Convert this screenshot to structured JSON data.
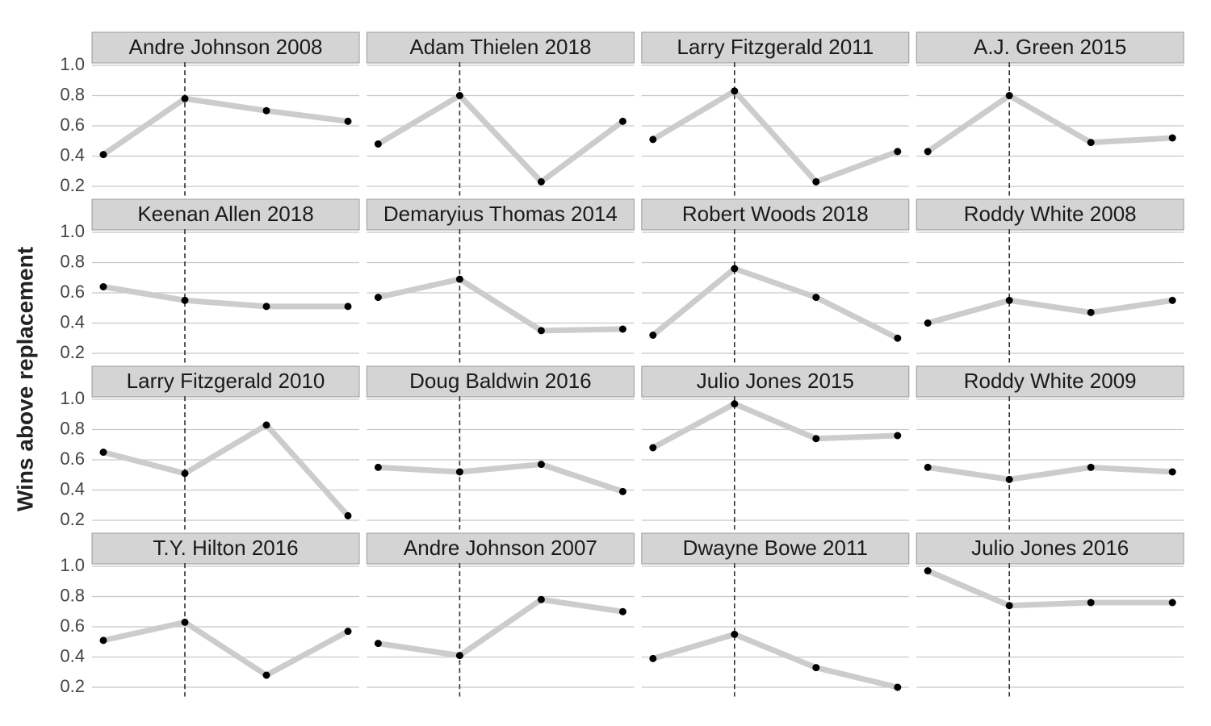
{
  "chart_data": [
    {
      "type": "line",
      "title": "Andre Johnson 2008",
      "ylabel": "Wins above replacement",
      "categories": [
        null,
        null,
        null,
        null
      ],
      "values": [
        0.41,
        0.78,
        0.7,
        0.63
      ],
      "color": "#cccccc",
      "point_color": "#000000",
      "ylim": [
        0.16,
        1.01
      ],
      "yticks": [
        0.2,
        0.4,
        0.6,
        0.8,
        {
          "value": 1,
          "label": "1.0"
        }
      ],
      "grid": true
    },
    {
      "type": "line",
      "title": "Adam Thielen 2018",
      "categories": [
        null,
        null,
        null,
        null
      ],
      "values": [
        0.48,
        0.8,
        0.23,
        0.63
      ],
      "color": "#cccccc",
      "point_color": "#000000",
      "ylim": [
        0.16,
        1.01
      ],
      "yticks": [
        0.2,
        0.4,
        0.6,
        0.8,
        {
          "value": 1,
          "label": "1.0"
        }
      ],
      "grid": true
    },
    {
      "type": "line",
      "title": "Larry Fitzgerald 2011",
      "categories": [
        null,
        null,
        null,
        null
      ],
      "values": [
        0.51,
        0.83,
        0.23,
        0.43
      ],
      "color": "#cccccc",
      "point_color": "#000000",
      "ylim": [
        0.16,
        1.01
      ],
      "yticks": [
        0.2,
        0.4,
        0.6,
        0.8,
        {
          "value": 1,
          "label": "1.0"
        }
      ],
      "grid": true
    },
    {
      "type": "line",
      "title": "A.J. Green 2015",
      "categories": [
        null,
        null,
        null,
        null
      ],
      "values": [
        0.43,
        0.8,
        0.49,
        0.52
      ],
      "color": "#cccccc",
      "point_color": "#000000",
      "ylim": [
        0.16,
        1.01
      ],
      "yticks": [
        0.2,
        0.4,
        0.6,
        0.8,
        {
          "value": 1,
          "label": "1.0"
        }
      ],
      "grid": true
    },
    {
      "type": "line",
      "title": "Keenan Allen 2018",
      "categories": [
        null,
        null,
        null,
        null
      ],
      "values": [
        0.64,
        0.55,
        0.51,
        0.51
      ],
      "color": "#cccccc",
      "point_color": "#000000",
      "ylim": [
        0.16,
        1.01
      ],
      "yticks": [
        0.2,
        0.4,
        0.6,
        0.8,
        {
          "value": 1,
          "label": "1.0"
        }
      ],
      "grid": true
    },
    {
      "type": "line",
      "title": "Demaryius Thomas 2014",
      "categories": [
        null,
        null,
        null,
        null
      ],
      "values": [
        0.57,
        0.69,
        0.35,
        0.36
      ],
      "color": "#cccccc",
      "point_color": "#000000",
      "ylim": [
        0.16,
        1.01
      ],
      "yticks": [
        0.2,
        0.4,
        0.6,
        0.8,
        {
          "value": 1,
          "label": "1.0"
        }
      ],
      "grid": true
    },
    {
      "type": "line",
      "title": "Robert Woods 2018",
      "categories": [
        null,
        null,
        null,
        null
      ],
      "values": [
        0.32,
        0.76,
        0.57,
        0.3
      ],
      "color": "#cccccc",
      "point_color": "#000000",
      "ylim": [
        0.16,
        1.01
      ],
      "yticks": [
        0.2,
        0.4,
        0.6,
        0.8,
        {
          "value": 1,
          "label": "1.0"
        }
      ],
      "grid": true
    },
    {
      "type": "line",
      "title": "Roddy White 2008",
      "categories": [
        null,
        null,
        null,
        null
      ],
      "values": [
        0.4,
        0.55,
        0.47,
        0.55
      ],
      "color": "#cccccc",
      "point_color": "#000000",
      "ylim": [
        0.16,
        1.01
      ],
      "yticks": [
        0.2,
        0.4,
        0.6,
        0.8,
        {
          "value": 1,
          "label": "1.0"
        }
      ],
      "grid": true
    },
    {
      "type": "line",
      "title": "Larry Fitzgerald 2010",
      "categories": [
        null,
        null,
        null,
        null
      ],
      "values": [
        0.65,
        0.51,
        0.83,
        0.23
      ],
      "color": "#cccccc",
      "point_color": "#000000",
      "ylim": [
        0.16,
        1.01
      ],
      "yticks": [
        0.2,
        0.4,
        0.6,
        0.8,
        {
          "value": 1,
          "label": "1.0"
        }
      ],
      "grid": true
    },
    {
      "type": "line",
      "title": "Doug Baldwin 2016",
      "categories": [
        null,
        null,
        null,
        null
      ],
      "values": [
        0.55,
        0.52,
        0.57,
        0.39
      ],
      "color": "#cccccc",
      "point_color": "#000000",
      "ylim": [
        0.16,
        1.01
      ],
      "yticks": [
        0.2,
        0.4,
        0.6,
        0.8,
        {
          "value": 1,
          "label": "1.0"
        }
      ],
      "grid": true
    },
    {
      "type": "line",
      "title": "Julio Jones 2015",
      "categories": [
        null,
        null,
        null,
        null
      ],
      "values": [
        0.68,
        0.97,
        0.74,
        0.76
      ],
      "color": "#cccccc",
      "point_color": "#000000",
      "ylim": [
        0.16,
        1.01
      ],
      "yticks": [
        0.2,
        0.4,
        0.6,
        0.8,
        {
          "value": 1,
          "label": "1.0"
        }
      ],
      "grid": true
    },
    {
      "type": "line",
      "title": "Roddy White 2009",
      "categories": [
        null,
        null,
        null,
        null
      ],
      "values": [
        0.55,
        0.47,
        0.55,
        0.52
      ],
      "color": "#cccccc",
      "point_color": "#000000",
      "ylim": [
        0.16,
        1.01
      ],
      "yticks": [
        0.2,
        0.4,
        0.6,
        0.8,
        {
          "value": 1,
          "label": "1.0"
        }
      ],
      "grid": true
    },
    {
      "type": "line",
      "title": "T.Y. Hilton 2016",
      "categories": [
        null,
        null,
        null,
        null
      ],
      "values": [
        0.51,
        0.63,
        0.28,
        0.57
      ],
      "color": "#cccccc",
      "point_color": "#000000",
      "ylim": [
        0.16,
        1.01
      ],
      "yticks": [
        0.2,
        0.4,
        0.6,
        0.8,
        {
          "value": 1,
          "label": "1.0"
        }
      ],
      "grid": true
    },
    {
      "type": "line",
      "title": "Andre Johnson 2007",
      "categories": [
        null,
        null,
        null,
        null
      ],
      "values": [
        0.49,
        0.41,
        0.78,
        0.7
      ],
      "color": "#cccccc",
      "point_color": "#000000",
      "ylim": [
        0.16,
        1.01
      ],
      "yticks": [
        0.2,
        0.4,
        0.6,
        0.8,
        {
          "value": 1,
          "label": "1.0"
        }
      ],
      "grid": true
    },
    {
      "type": "line",
      "title": "Dwayne Bowe 2011",
      "categories": [
        null,
        null,
        null,
        null
      ],
      "values": [
        0.39,
        0.55,
        0.33,
        0.2
      ],
      "color": "#cccccc",
      "point_color": "#000000",
      "ylim": [
        0.16,
        1.01
      ],
      "yticks": [
        0.2,
        0.4,
        0.6,
        0.8,
        {
          "value": 1,
          "label": "1.0"
        }
      ],
      "grid": true
    },
    {
      "type": "line",
      "title": "Julio Jones 2016",
      "categories": [
        null,
        null,
        null,
        null
      ],
      "values": [
        0.97,
        0.74,
        0.76,
        0.76
      ],
      "color": "#cccccc",
      "point_color": "#000000",
      "ylim": [
        0.16,
        1.01
      ],
      "yticks": [
        0.2,
        0.4,
        0.6,
        0.8,
        {
          "value": 1,
          "label": "1.0"
        }
      ],
      "grid": true
    }
  ]
}
